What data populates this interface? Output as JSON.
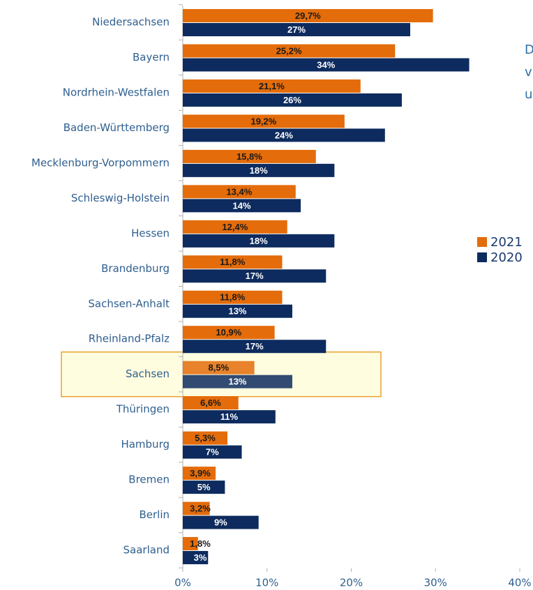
{
  "chart_data": {
    "type": "hbar",
    "categories": [
      "Niedersachsen",
      "Bayern",
      "Nordrhein-Westfalen",
      "Baden-Württemberg",
      "Mecklenburg-Vorpommern",
      "Schleswig-Holstein",
      "Hessen",
      "Brandenburg",
      "Sachsen-Anhalt",
      "Rheinland-Pfalz",
      "Sachsen",
      "Thüringen",
      "Hamburg",
      "Bremen",
      "Berlin",
      "Saarland"
    ],
    "series": [
      {
        "name": "2021",
        "color": "#e46c0a",
        "label_color": "#1a1a1a",
        "values": [
          29.7,
          25.2,
          21.1,
          19.2,
          15.8,
          13.4,
          12.4,
          11.8,
          11.8,
          10.9,
          8.5,
          6.6,
          5.3,
          3.9,
          3.2,
          1.8
        ],
        "value_labels": [
          "29,7%",
          "25,2%",
          "21,1%",
          "19,2%",
          "15,8%",
          "13,4%",
          "12,4%",
          "11,8%",
          "11,8%",
          "10,9%",
          "8,5%",
          "6,6%",
          "5,3%",
          "3,9%",
          "3,2%",
          "1,8%"
        ]
      },
      {
        "name": "2020",
        "color": "#0d2b5e",
        "label_color": "#ffffff",
        "values": [
          27,
          34,
          26,
          24,
          18,
          14,
          18,
          17,
          13,
          17,
          13,
          11,
          7,
          5,
          9,
          3
        ],
        "value_labels": [
          "27%",
          "34%",
          "26%",
          "24%",
          "18%",
          "14%",
          "18%",
          "17%",
          "13%",
          "17%",
          "13%",
          "11%",
          "7%",
          "5%",
          "9%",
          "3%"
        ]
      }
    ],
    "xlim": [
      0,
      40
    ],
    "xticks": [
      {
        "value": 0,
        "label": "0%"
      },
      {
        "value": 10,
        "label": "10%"
      },
      {
        "value": 20,
        "label": "20%"
      },
      {
        "value": 30,
        "label": "30%"
      },
      {
        "value": 40,
        "label": "40%"
      }
    ],
    "highlight": "Sachsen",
    "annotation_lines": [
      "D",
      "v",
      "u"
    ]
  }
}
